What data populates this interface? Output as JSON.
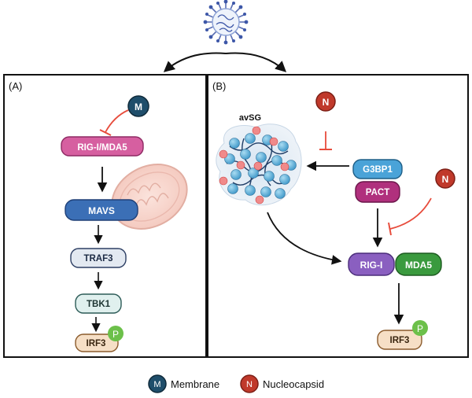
{
  "panels": {
    "a": {
      "label": "(A)"
    },
    "b": {
      "label": "(B)"
    }
  },
  "panel_a": {
    "m_badge": "M",
    "rig_mda5": "RIG-I/MDA5",
    "mavs": "MAVS",
    "traf3": "TRAF3",
    "tbk1": "TBK1",
    "irf3": "IRF3",
    "phospho": "P"
  },
  "panel_b": {
    "avsg": "avSG",
    "n_badge_top": "N",
    "n_badge_right": "N",
    "g3bp1": "G3BP1",
    "pact": "PACT",
    "rig_i": "RIG-I",
    "mda5": "MDA5",
    "irf3": "IRF3",
    "phospho": "P"
  },
  "legend": {
    "m_badge": "M",
    "membrane": "Membrane",
    "n_badge": "N",
    "nucleocapsid": "Nucleocapsid"
  },
  "colors": {
    "membrane_badge": "#1f4e6b",
    "nucleocapsid_badge": "#c0392b",
    "inhibit": "#e74c3c",
    "rig_mda5": "#d65fa0",
    "mavs": "#3b6fb6",
    "traf3": "#e3e9f1",
    "tbk1": "#e0f0ee",
    "irf3": "#f6dfc6",
    "phospho": "#6cc04a",
    "g3bp1": "#4aa3d8",
    "pact": "#b0307d",
    "rig_i": "#8a5fc0",
    "mda5": "#3a9a3e"
  }
}
